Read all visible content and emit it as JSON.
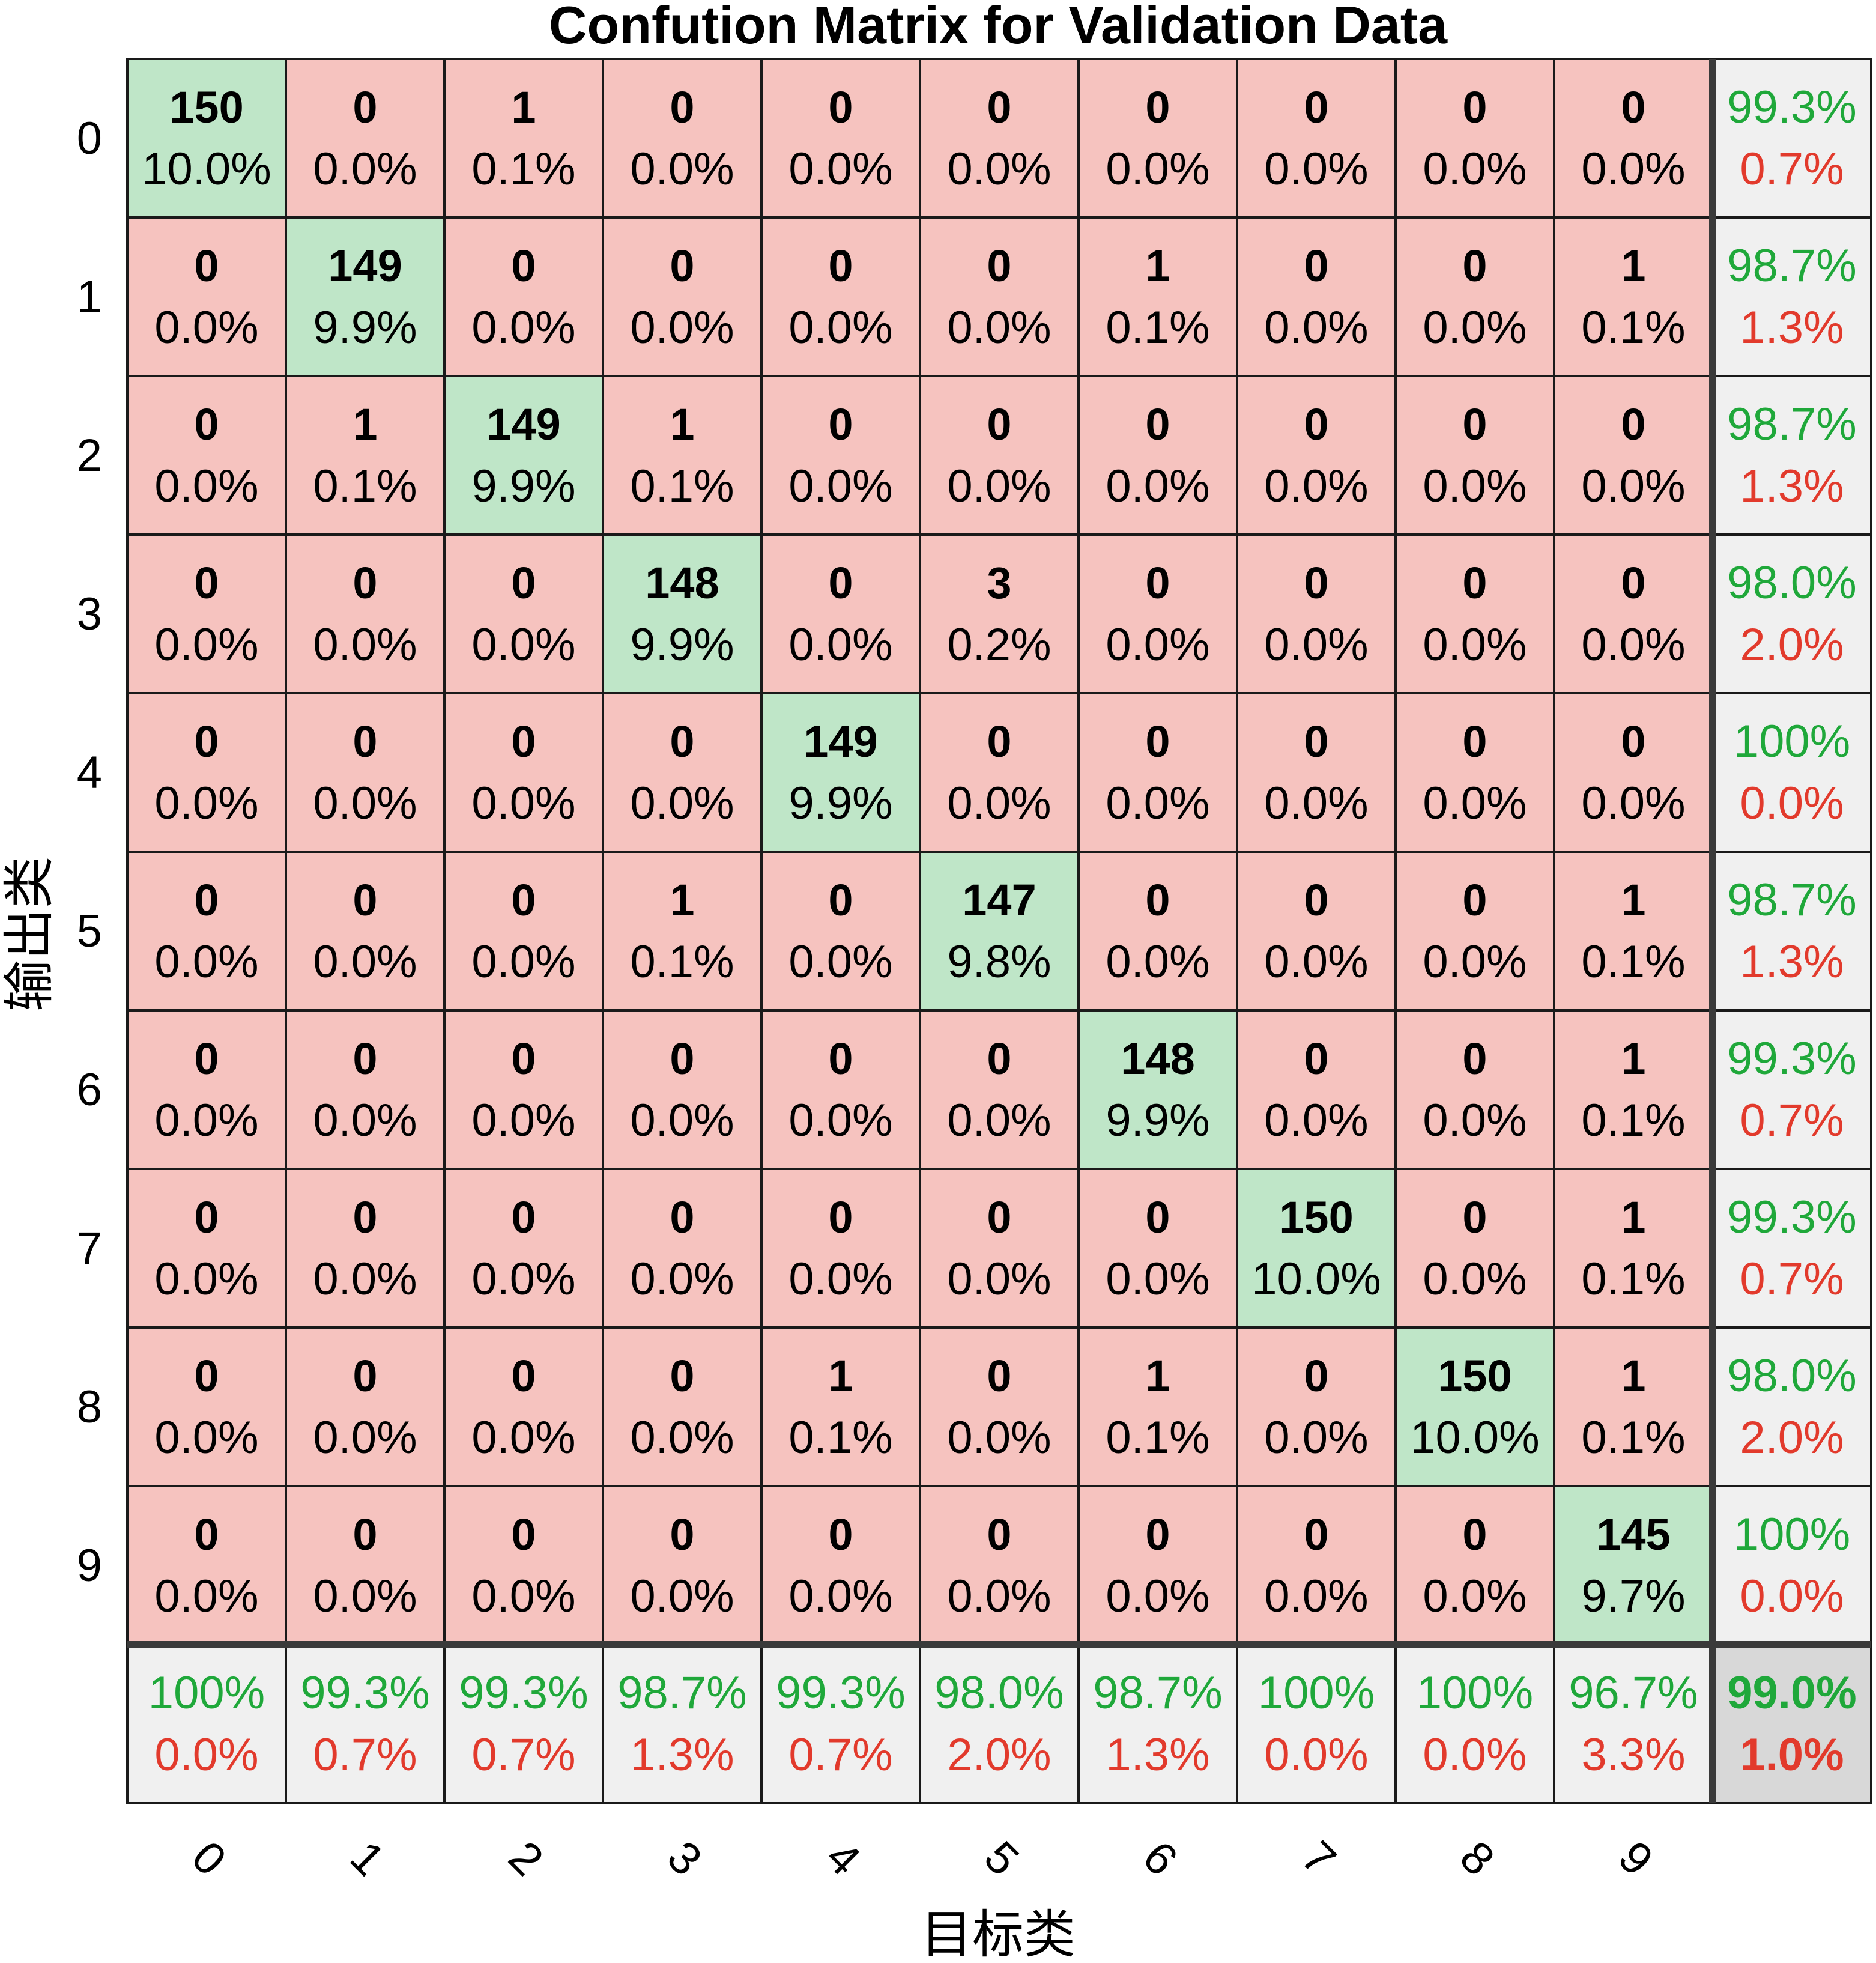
{
  "chart_data": {
    "type": "heatmap",
    "title": "Confution Matrix for Validation Data",
    "xlabel": "目标类",
    "ylabel": "输出类",
    "row_labels": [
      "0",
      "1",
      "2",
      "3",
      "4",
      "5",
      "6",
      "7",
      "8",
      "9"
    ],
    "col_labels": [
      "0",
      "1",
      "2",
      "3",
      "4",
      "5",
      "6",
      "7",
      "8",
      "9"
    ],
    "counts": [
      [
        150,
        0,
        1,
        0,
        0,
        0,
        0,
        0,
        0,
        0
      ],
      [
        0,
        149,
        0,
        0,
        0,
        0,
        1,
        0,
        0,
        1
      ],
      [
        0,
        1,
        149,
        1,
        0,
        0,
        0,
        0,
        0,
        0
      ],
      [
        0,
        0,
        0,
        148,
        0,
        3,
        0,
        0,
        0,
        0
      ],
      [
        0,
        0,
        0,
        0,
        149,
        0,
        0,
        0,
        0,
        0
      ],
      [
        0,
        0,
        0,
        1,
        0,
        147,
        0,
        0,
        0,
        1
      ],
      [
        0,
        0,
        0,
        0,
        0,
        0,
        148,
        0,
        0,
        1
      ],
      [
        0,
        0,
        0,
        0,
        0,
        0,
        0,
        150,
        0,
        1
      ],
      [
        0,
        0,
        0,
        0,
        1,
        0,
        1,
        0,
        150,
        1
      ],
      [
        0,
        0,
        0,
        0,
        0,
        0,
        0,
        0,
        0,
        145
      ]
    ],
    "percents": [
      [
        "10.0%",
        "0.0%",
        "0.1%",
        "0.0%",
        "0.0%",
        "0.0%",
        "0.0%",
        "0.0%",
        "0.0%",
        "0.0%"
      ],
      [
        "0.0%",
        "9.9%",
        "0.0%",
        "0.0%",
        "0.0%",
        "0.0%",
        "0.1%",
        "0.0%",
        "0.0%",
        "0.1%"
      ],
      [
        "0.0%",
        "0.1%",
        "9.9%",
        "0.1%",
        "0.0%",
        "0.0%",
        "0.0%",
        "0.0%",
        "0.0%",
        "0.0%"
      ],
      [
        "0.0%",
        "0.0%",
        "0.0%",
        "9.9%",
        "0.0%",
        "0.2%",
        "0.0%",
        "0.0%",
        "0.0%",
        "0.0%"
      ],
      [
        "0.0%",
        "0.0%",
        "0.0%",
        "0.0%",
        "9.9%",
        "0.0%",
        "0.0%",
        "0.0%",
        "0.0%",
        "0.0%"
      ],
      [
        "0.0%",
        "0.0%",
        "0.0%",
        "0.1%",
        "0.0%",
        "9.8%",
        "0.0%",
        "0.0%",
        "0.0%",
        "0.1%"
      ],
      [
        "0.0%",
        "0.0%",
        "0.0%",
        "0.0%",
        "0.0%",
        "0.0%",
        "9.9%",
        "0.0%",
        "0.0%",
        "0.1%"
      ],
      [
        "0.0%",
        "0.0%",
        "0.0%",
        "0.0%",
        "0.0%",
        "0.0%",
        "0.0%",
        "10.0%",
        "0.0%",
        "0.1%"
      ],
      [
        "0.0%",
        "0.0%",
        "0.0%",
        "0.0%",
        "0.1%",
        "0.0%",
        "0.1%",
        "0.0%",
        "10.0%",
        "0.1%"
      ],
      [
        "0.0%",
        "0.0%",
        "0.0%",
        "0.0%",
        "0.0%",
        "0.0%",
        "0.0%",
        "0.0%",
        "0.0%",
        "9.7%"
      ]
    ],
    "row_summary": [
      {
        "correct": "99.3%",
        "error": "0.7%"
      },
      {
        "correct": "98.7%",
        "error": "1.3%"
      },
      {
        "correct": "98.7%",
        "error": "1.3%"
      },
      {
        "correct": "98.0%",
        "error": "2.0%"
      },
      {
        "correct": "100%",
        "error": "0.0%"
      },
      {
        "correct": "98.7%",
        "error": "1.3%"
      },
      {
        "correct": "99.3%",
        "error": "0.7%"
      },
      {
        "correct": "99.3%",
        "error": "0.7%"
      },
      {
        "correct": "98.0%",
        "error": "2.0%"
      },
      {
        "correct": "100%",
        "error": "0.0%"
      }
    ],
    "col_summary": [
      {
        "correct": "100%",
        "error": "0.0%"
      },
      {
        "correct": "99.3%",
        "error": "0.7%"
      },
      {
        "correct": "99.3%",
        "error": "0.7%"
      },
      {
        "correct": "98.7%",
        "error": "1.3%"
      },
      {
        "correct": "99.3%",
        "error": "0.7%"
      },
      {
        "correct": "98.0%",
        "error": "2.0%"
      },
      {
        "correct": "98.7%",
        "error": "1.3%"
      },
      {
        "correct": "100%",
        "error": "0.0%"
      },
      {
        "correct": "100%",
        "error": "0.0%"
      },
      {
        "correct": "96.7%",
        "error": "3.3%"
      }
    ],
    "overall": {
      "correct": "99.0%",
      "error": "1.0%"
    },
    "colors": {
      "diagonal": "#bfe6c8",
      "off_diagonal": "#f6c3bf",
      "summary": "#f0f0f0",
      "overall": "#d8d8d8",
      "correct_text": "#1fa83a",
      "error_text": "#e23a2c",
      "grid": "#1a1a1a",
      "separator": "#3a3a3a"
    }
  }
}
